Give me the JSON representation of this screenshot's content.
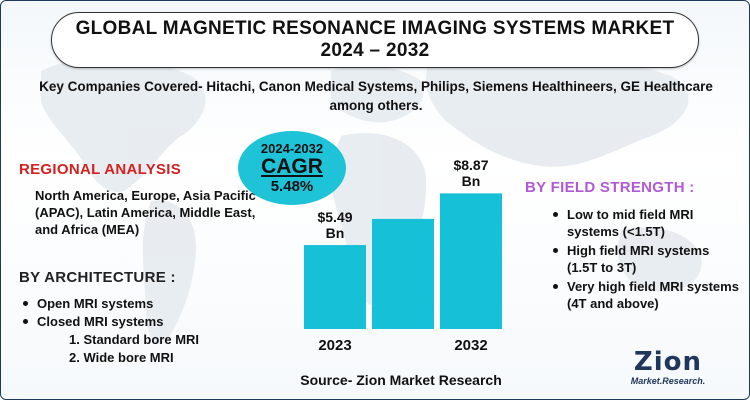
{
  "title": {
    "line1": "GLOBAL MAGNETIC RESONANCE IMAGING SYSTEMS MARKET",
    "line2": "2024 – 2032"
  },
  "companies": "Key Companies Covered- Hitachi, Canon Medical Systems, Philips, Siemens Healthineers, GE Healthcare among others.",
  "regional": {
    "heading": "REGIONAL ANALYSIS",
    "text": "North America, Europe, Asia Pacific (APAC), Latin America, Middle East, and Africa (MEA)"
  },
  "architecture": {
    "heading": "BY ARCHITECTURE :",
    "items": [
      "Open MRI systems",
      "Closed MRI systems"
    ],
    "subitems": [
      "1. Standard bore MRI",
      "2. Wide bore MRI"
    ]
  },
  "field_strength": {
    "heading": "BY FIELD STRENGTH :",
    "items": [
      "Low to mid field MRI systems (<1.5T)",
      "High field MRI systems (1.5T to 3T)",
      "Very high field MRI systems (4T and above)"
    ]
  },
  "cagr": {
    "years": "2024-2032",
    "label": "CAGR",
    "value": "5.48%"
  },
  "source": "Source- Zion Market Research",
  "logo": {
    "word": "Zion",
    "sub": "Market.Research."
  },
  "colors": {
    "bar": "#16c0d6",
    "cagr_bubble": "#1ec3d8",
    "regional_heading": "#d42020",
    "field_heading": "#b05ad6",
    "logo": "#21365c"
  },
  "chart_data": {
    "type": "bar",
    "categories": [
      "2023",
      "",
      "2032"
    ],
    "values": [
      5.49,
      7.2,
      8.87
    ],
    "value_labels": [
      "$5.49 Bn",
      "",
      "$8.87 Bn"
    ],
    "unit": "Bn",
    "grid": false,
    "ylim": [
      0,
      9.5
    ]
  }
}
